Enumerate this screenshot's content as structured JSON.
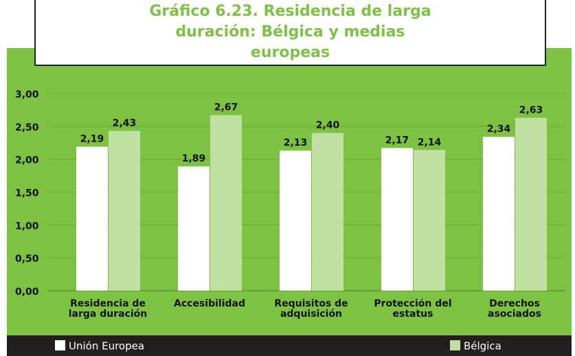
{
  "chart_data": {
    "type": "bar",
    "title": "Gráfico 6.23. Residencia de larga duración: Bélgica y medias europeas",
    "categories": [
      "Residencia de larga duración",
      "Accesibilidad",
      "Requisitos de adquisición",
      "Protección del estatus",
      "Derechos asociados"
    ],
    "series": [
      {
        "name": "Unión Europea",
        "color": "#ffffff",
        "values": [
          2.19,
          1.89,
          2.13,
          2.17,
          2.34
        ],
        "value_labels": [
          "2,19",
          "1,89",
          "2,13",
          "2,17",
          "2,34"
        ]
      },
      {
        "name": "Bélgica",
        "color": "#bfe0a0",
        "values": [
          2.43,
          2.67,
          2.4,
          2.14,
          2.63
        ],
        "value_labels": [
          "2,43",
          "2,67",
          "2,40",
          "2,14",
          "2,63"
        ]
      }
    ],
    "ylim": [
      0,
      3
    ],
    "yticks": [
      {
        "value": 0,
        "label": "0,00"
      },
      {
        "value": 0.5,
        "label": "0,50"
      },
      {
        "value": 1,
        "label": "1,00"
      },
      {
        "value": 1.5,
        "label": "1,50"
      },
      {
        "value": 2,
        "label": "2,00"
      },
      {
        "value": 2.5,
        "label": "2,50"
      },
      {
        "value": 3,
        "label": "3,00"
      }
    ]
  }
}
